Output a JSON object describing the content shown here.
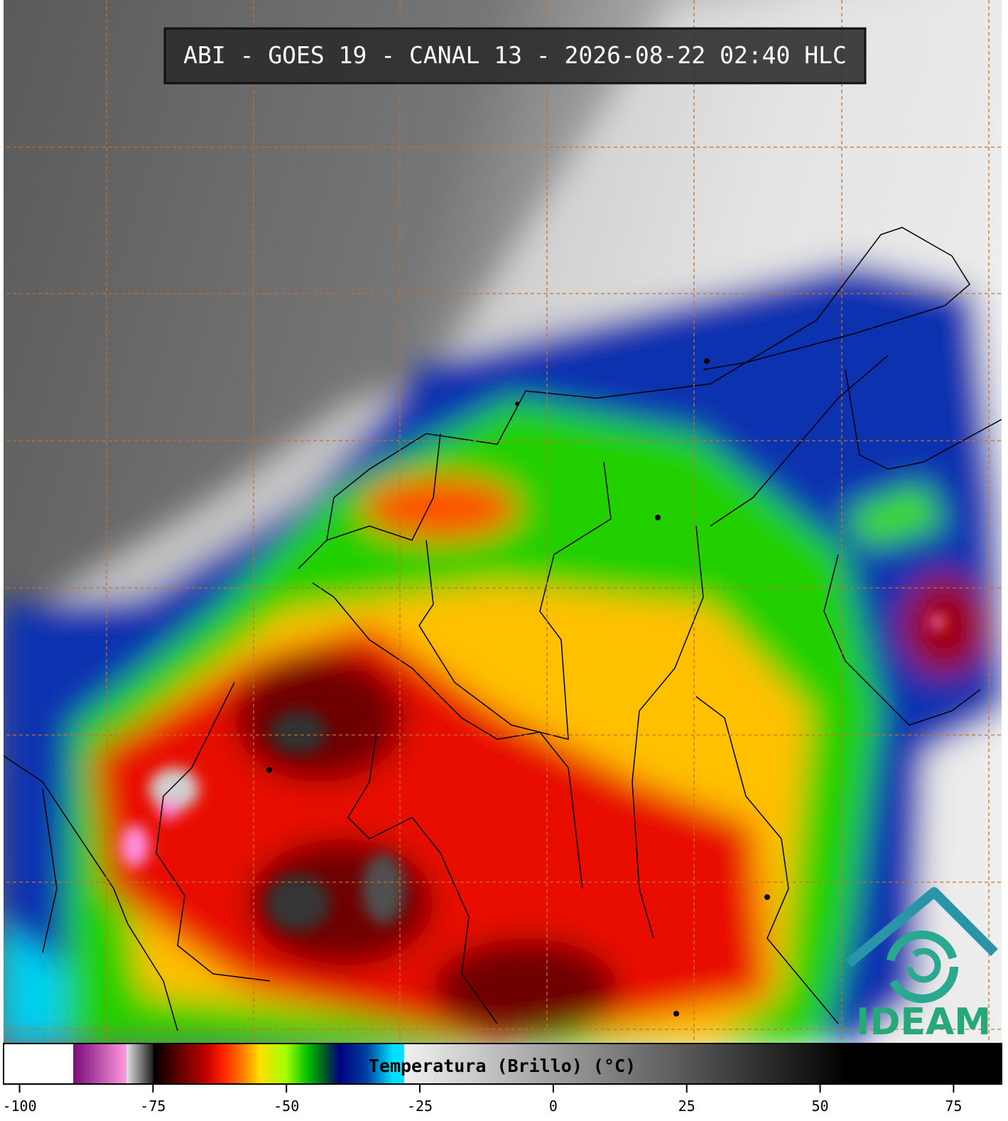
{
  "header": {
    "title": "ABI - GOES 19 - CANAL 13 - 2026-08-22 02:40 HLC"
  },
  "logo": {
    "text": "IDEAM"
  },
  "colorbar": {
    "label": "Temperatura (Brillo) (°C)",
    "range": [
      -103,
      84
    ],
    "ticks": [
      -100,
      -75,
      -50,
      -25,
      0,
      25,
      50,
      75
    ],
    "stops": [
      {
        "value": -103,
        "color": "#ffffff"
      },
      {
        "value": -90,
        "color": "#ffffff"
      },
      {
        "value": -89.9,
        "color": "#7a0a7a"
      },
      {
        "value": -80,
        "color": "#ff9adc"
      },
      {
        "value": -79.9,
        "color": "#e0e0e0"
      },
      {
        "value": -75,
        "color": "#202020"
      },
      {
        "value": -74.9,
        "color": "#000000"
      },
      {
        "value": -70,
        "color": "#600000"
      },
      {
        "value": -65,
        "color": "#c00000"
      },
      {
        "value": -62,
        "color": "#ff2000"
      },
      {
        "value": -58,
        "color": "#ff8000"
      },
      {
        "value": -55,
        "color": "#ffe000"
      },
      {
        "value": -50,
        "color": "#a0ff00"
      },
      {
        "value": -46,
        "color": "#00c000"
      },
      {
        "value": -43,
        "color": "#006020"
      },
      {
        "value": -40,
        "color": "#000080"
      },
      {
        "value": -35,
        "color": "#0040a0"
      },
      {
        "value": -30,
        "color": "#00e0ff"
      },
      {
        "value": -28,
        "color": "#00e0ff"
      },
      {
        "value": -27.9,
        "color": "#f0f0f0"
      },
      {
        "value": 55,
        "color": "#000000"
      },
      {
        "value": 84,
        "color": "#000000"
      }
    ]
  }
}
